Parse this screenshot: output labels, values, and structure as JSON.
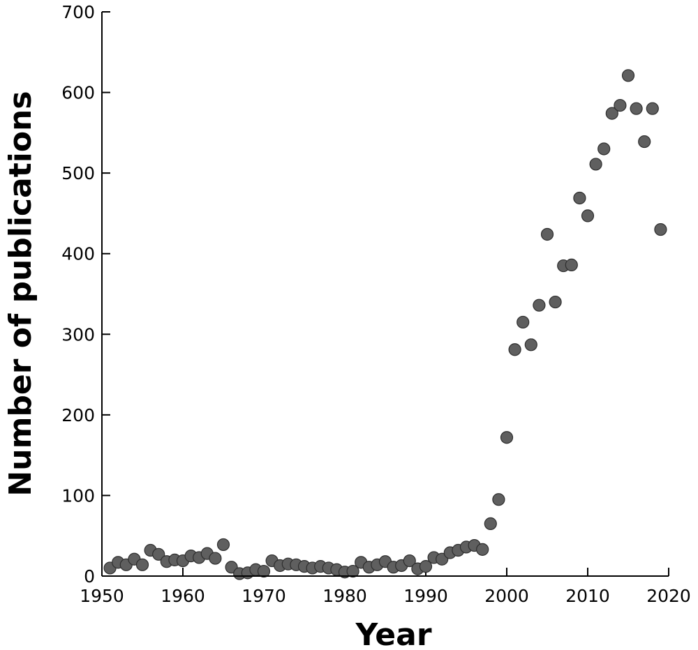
{
  "chart_data": {
    "type": "scatter",
    "xlabel": "Year",
    "ylabel": "Number of publications",
    "xlim": [
      1950,
      2020
    ],
    "ylim": [
      0,
      700
    ],
    "x_ticks": [
      1950,
      1960,
      1970,
      1980,
      1990,
      2000,
      2010,
      2020
    ],
    "y_ticks": [
      0,
      100,
      200,
      300,
      400,
      500,
      600,
      700
    ],
    "grid": false,
    "point_color": "#5f5f5f",
    "points": [
      {
        "x": 1951,
        "y": 10
      },
      {
        "x": 1952,
        "y": 17
      },
      {
        "x": 1953,
        "y": 14
      },
      {
        "x": 1954,
        "y": 21
      },
      {
        "x": 1955,
        "y": 14
      },
      {
        "x": 1956,
        "y": 32
      },
      {
        "x": 1957,
        "y": 27
      },
      {
        "x": 1958,
        "y": 18
      },
      {
        "x": 1959,
        "y": 20
      },
      {
        "x": 1960,
        "y": 19
      },
      {
        "x": 1961,
        "y": 25
      },
      {
        "x": 1962,
        "y": 23
      },
      {
        "x": 1963,
        "y": 28
      },
      {
        "x": 1964,
        "y": 22
      },
      {
        "x": 1965,
        "y": 39
      },
      {
        "x": 1966,
        "y": 11
      },
      {
        "x": 1967,
        "y": 3
      },
      {
        "x": 1968,
        "y": 4
      },
      {
        "x": 1969,
        "y": 8
      },
      {
        "x": 1970,
        "y": 6
      },
      {
        "x": 1971,
        "y": 19
      },
      {
        "x": 1972,
        "y": 13
      },
      {
        "x": 1973,
        "y": 15
      },
      {
        "x": 1974,
        "y": 14
      },
      {
        "x": 1975,
        "y": 12
      },
      {
        "x": 1976,
        "y": 10
      },
      {
        "x": 1977,
        "y": 12
      },
      {
        "x": 1978,
        "y": 10
      },
      {
        "x": 1979,
        "y": 8
      },
      {
        "x": 1980,
        "y": 5
      },
      {
        "x": 1981,
        "y": 6
      },
      {
        "x": 1982,
        "y": 17
      },
      {
        "x": 1983,
        "y": 11
      },
      {
        "x": 1984,
        "y": 14
      },
      {
        "x": 1985,
        "y": 18
      },
      {
        "x": 1986,
        "y": 11
      },
      {
        "x": 1987,
        "y": 13
      },
      {
        "x": 1988,
        "y": 19
      },
      {
        "x": 1989,
        "y": 9
      },
      {
        "x": 1990,
        "y": 12
      },
      {
        "x": 1991,
        "y": 23
      },
      {
        "x": 1992,
        "y": 21
      },
      {
        "x": 1993,
        "y": 29
      },
      {
        "x": 1994,
        "y": 32
      },
      {
        "x": 1995,
        "y": 36
      },
      {
        "x": 1996,
        "y": 38
      },
      {
        "x": 1997,
        "y": 33
      },
      {
        "x": 1998,
        "y": 65
      },
      {
        "x": 1999,
        "y": 95
      },
      {
        "x": 2000,
        "y": 172
      },
      {
        "x": 2001,
        "y": 281
      },
      {
        "x": 2002,
        "y": 315
      },
      {
        "x": 2003,
        "y": 287
      },
      {
        "x": 2004,
        "y": 336
      },
      {
        "x": 2005,
        "y": 424
      },
      {
        "x": 2006,
        "y": 340
      },
      {
        "x": 2007,
        "y": 385
      },
      {
        "x": 2008,
        "y": 386
      },
      {
        "x": 2009,
        "y": 469
      },
      {
        "x": 2010,
        "y": 447
      },
      {
        "x": 2011,
        "y": 511
      },
      {
        "x": 2012,
        "y": 530
      },
      {
        "x": 2013,
        "y": 574
      },
      {
        "x": 2014,
        "y": 584
      },
      {
        "x": 2015,
        "y": 621
      },
      {
        "x": 2016,
        "y": 580
      },
      {
        "x": 2017,
        "y": 539
      },
      {
        "x": 2018,
        "y": 580
      },
      {
        "x": 2019,
        "y": 430
      }
    ]
  }
}
